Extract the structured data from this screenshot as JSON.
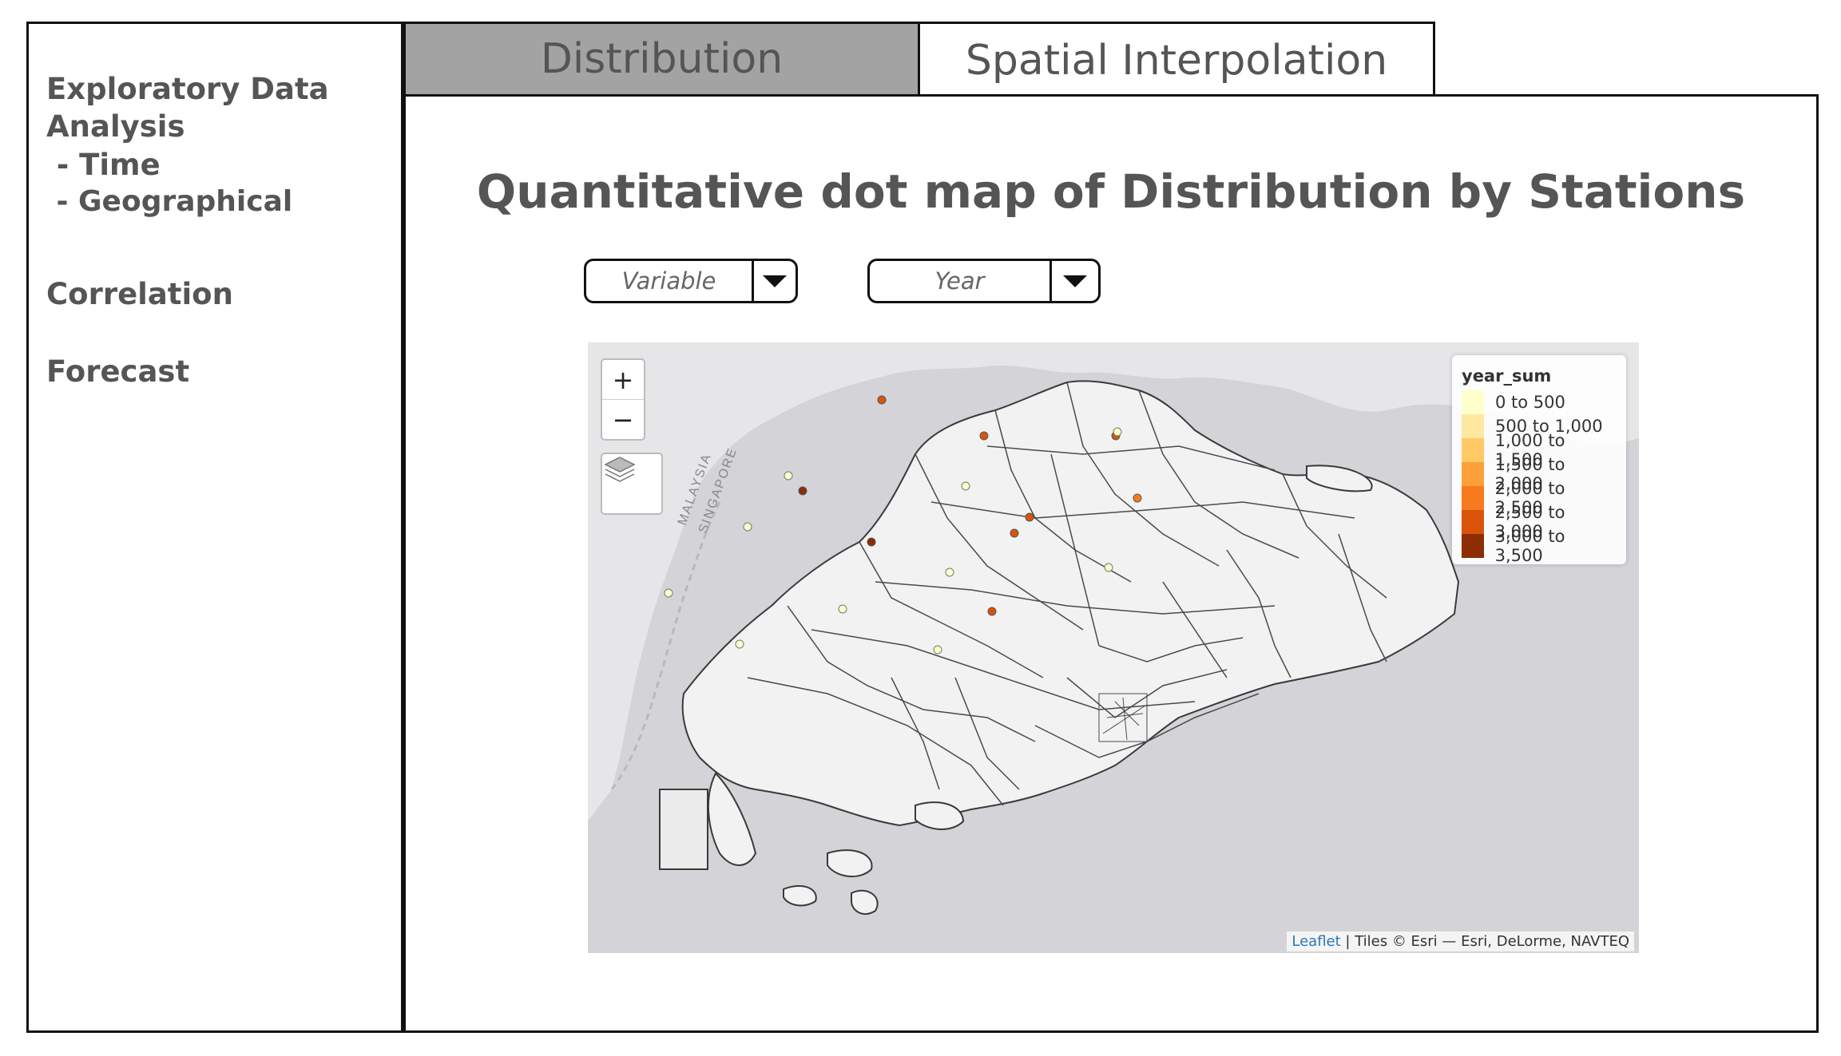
{
  "sidebar": {
    "items": [
      {
        "label": "Exploratory Data",
        "label2": "Analysis"
      },
      {
        "label": " - Time"
      },
      {
        "label": " - Geographical"
      },
      {
        "label": "Correlation"
      },
      {
        "label": "Forecast"
      }
    ]
  },
  "tabs": [
    {
      "label": "Distribution",
      "active": true
    },
    {
      "label": "Spatial Interpolation",
      "active": false
    }
  ],
  "main": {
    "title": "Quantitative dot map of Distribution by Stations",
    "variable_dropdown": {
      "value": "Variable"
    },
    "year_dropdown": {
      "value": "Year"
    }
  },
  "map": {
    "zoom_in_label": "+",
    "zoom_out_label": "−",
    "layers_icon": "layers-icon",
    "labels": [
      "MALAYSIA",
      "SINGAPORE"
    ],
    "legend": {
      "title": "year_sum",
      "items": [
        {
          "label": "0 to 500",
          "color": "#ffffcc"
        },
        {
          "label": "500 to 1,000",
          "color": "#fee8a0"
        },
        {
          "label": "1,000 to 1,500",
          "color": "#fec966"
        },
        {
          "label": "1,500 to 2,000",
          "color": "#fda03a"
        },
        {
          "label": "2,000 to 2,500",
          "color": "#f77b1c"
        },
        {
          "label": "2,500 to 3,000",
          "color": "#d9540a"
        },
        {
          "label": "3,000 to 3,500",
          "color": "#8c2d04"
        }
      ]
    },
    "attribution": {
      "link": "Leaflet",
      "text": " | Tiles © Esri — Esri, DeLorme, NAVTEQ"
    }
  }
}
